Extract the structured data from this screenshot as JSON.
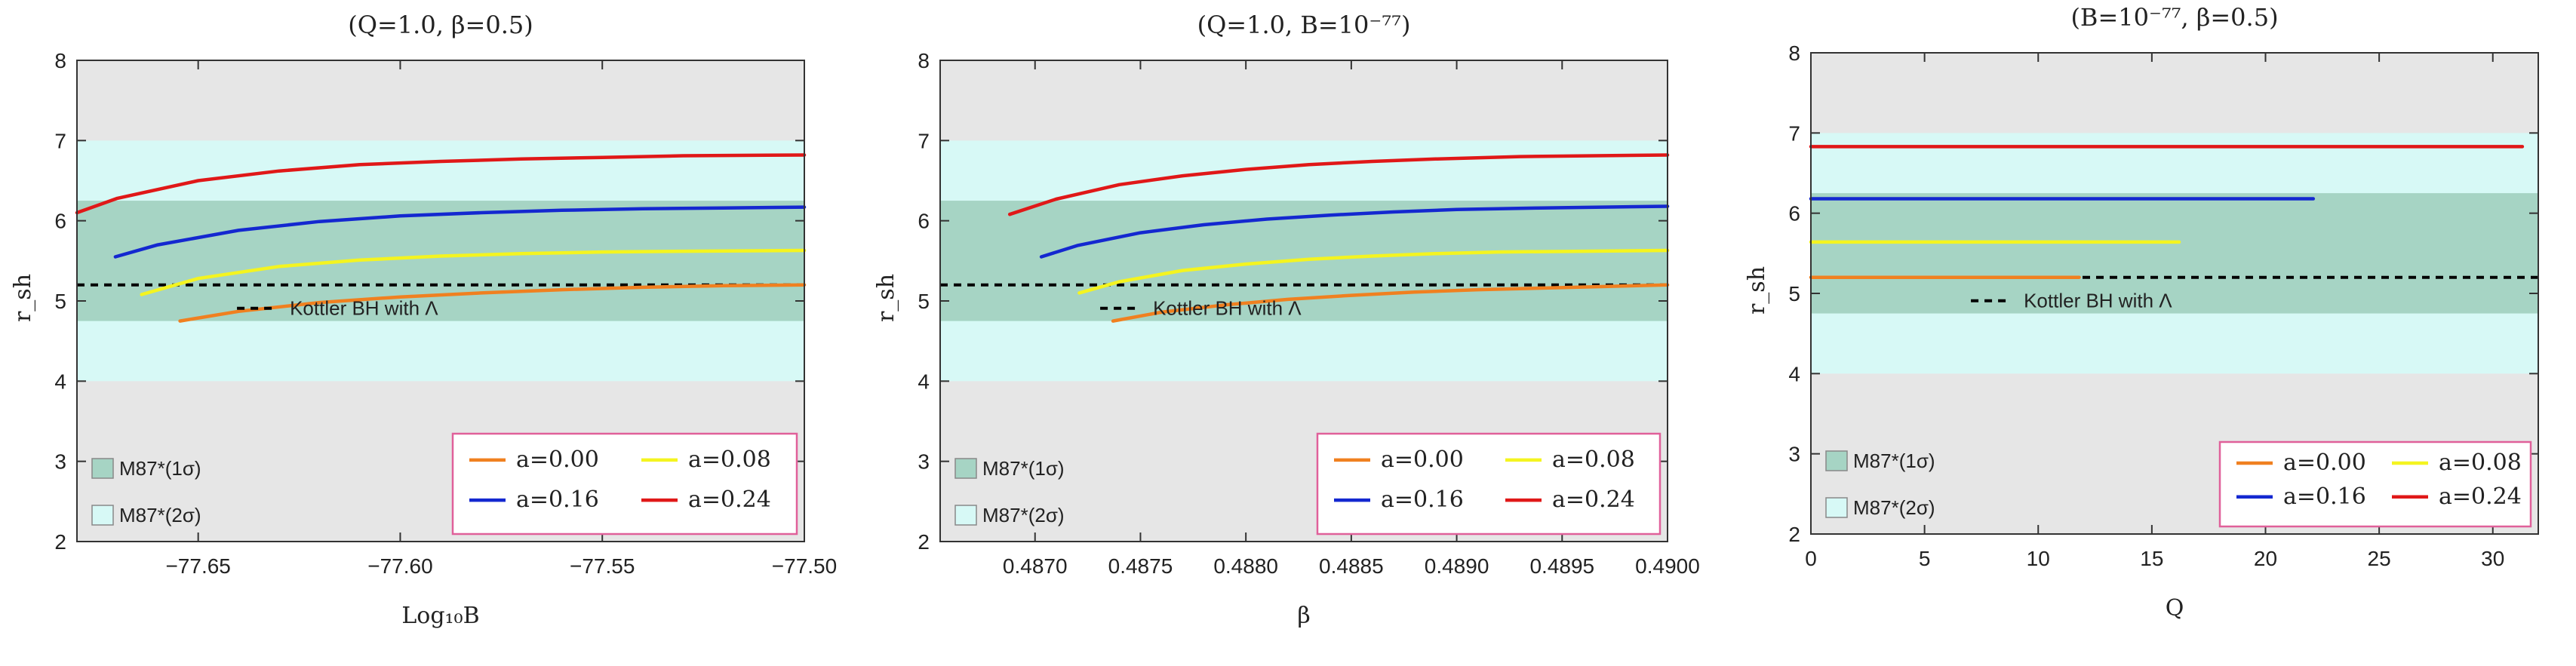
{
  "colors": {
    "outer_band": "#e6e6e6",
    "band_2sigma": "#d7f9f6",
    "band_1sigma": "#a6d4c4",
    "frame": "#333333",
    "legend_border": "#e0609a",
    "kottler_line": "#000000"
  },
  "chart_data": [
    {
      "type": "line",
      "title": "(Q=1.0, β=0.5)",
      "xlabel": "Log₁₀B",
      "ylabel": "r_sh",
      "xlim": [
        -77.68,
        -77.5
      ],
      "ylim": [
        2,
        8
      ],
      "xticks": [
        -77.65,
        -77.6,
        -77.55,
        -77.5
      ],
      "xtick_labels": [
        "−77.65",
        "−77.60",
        "−77.55",
        "−77.50"
      ],
      "yticks": [
        2,
        3,
        4,
        5,
        6,
        7,
        8
      ],
      "bands": [
        {
          "label": "M87*(1σ)",
          "y": [
            4.75,
            6.25
          ],
          "color": "#a6d4c4"
        },
        {
          "label": "M87*(2σ)",
          "y": [
            4.0,
            7.0
          ],
          "color": "#d7f9f6"
        }
      ],
      "kottler": {
        "label": "Kottler BH with Λ",
        "y": 5.2
      },
      "series": [
        {
          "name": "a=0.00",
          "color": "#f08020",
          "x": [
            -77.6545,
            -77.64,
            -77.62,
            -77.6,
            -77.58,
            -77.56,
            -77.54,
            -77.52,
            -77.5
          ],
          "y": [
            4.75,
            4.87,
            4.98,
            5.05,
            5.1,
            5.14,
            5.17,
            5.19,
            5.2
          ]
        },
        {
          "name": "a=0.08",
          "color": "#f4f420",
          "x": [
            -77.664,
            -77.65,
            -77.63,
            -77.61,
            -77.59,
            -77.57,
            -77.55,
            -77.53,
            -77.5
          ],
          "y": [
            5.08,
            5.28,
            5.43,
            5.51,
            5.56,
            5.59,
            5.61,
            5.62,
            5.63
          ]
        },
        {
          "name": "a=0.16",
          "color": "#1428d0",
          "x": [
            -77.6705,
            -77.66,
            -77.64,
            -77.62,
            -77.6,
            -77.58,
            -77.56,
            -77.54,
            -77.52,
            -77.5
          ],
          "y": [
            5.55,
            5.7,
            5.88,
            5.99,
            6.06,
            6.1,
            6.13,
            6.15,
            6.16,
            6.17
          ]
        },
        {
          "name": "a=0.24",
          "color": "#e01818",
          "x": [
            -77.68,
            -77.67,
            -77.65,
            -77.63,
            -77.61,
            -77.59,
            -77.57,
            -77.55,
            -77.53,
            -77.5
          ],
          "y": [
            6.1,
            6.28,
            6.5,
            6.62,
            6.7,
            6.74,
            6.77,
            6.79,
            6.81,
            6.82
          ]
        }
      ]
    },
    {
      "type": "line",
      "title": "(Q=1.0, B=10⁻⁷⁷)",
      "xlabel": "β",
      "ylabel": "r_sh",
      "xlim": [
        0.48655,
        0.49
      ],
      "ylim": [
        2,
        8
      ],
      "xticks": [
        0.487,
        0.4875,
        0.488,
        0.4885,
        0.489,
        0.4895,
        0.49
      ],
      "xtick_labels": [
        "0.4870",
        "0.4875",
        "0.4880",
        "0.4885",
        "0.4890",
        "0.4895",
        "0.4900"
      ],
      "yticks": [
        2,
        3,
        4,
        5,
        6,
        7,
        8
      ],
      "bands": [
        {
          "label": "M87*(1σ)",
          "y": [
            4.75,
            6.25
          ],
          "color": "#a6d4c4"
        },
        {
          "label": "M87*(2σ)",
          "y": [
            4.0,
            7.0
          ],
          "color": "#d7f9f6"
        }
      ],
      "kottler": {
        "label": "Kottler BH with Λ",
        "y": 5.2
      },
      "series": [
        {
          "name": "a=0.00",
          "color": "#f08020",
          "x": [
            0.48737,
            0.4876,
            0.4879,
            0.4882,
            0.4885,
            0.4888,
            0.4891,
            0.4894,
            0.4897,
            0.49
          ],
          "y": [
            4.75,
            4.86,
            4.95,
            5.02,
            5.07,
            5.11,
            5.14,
            5.16,
            5.18,
            5.2
          ]
        },
        {
          "name": "a=0.08",
          "color": "#f4f420",
          "x": [
            0.48721,
            0.4874,
            0.4877,
            0.488,
            0.4883,
            0.4886,
            0.4889,
            0.4892,
            0.4896,
            0.49
          ],
          "y": [
            5.1,
            5.24,
            5.38,
            5.46,
            5.52,
            5.56,
            5.59,
            5.61,
            5.62,
            5.63
          ]
        },
        {
          "name": "a=0.16",
          "color": "#1428d0",
          "x": [
            0.48703,
            0.4872,
            0.4875,
            0.4878,
            0.4881,
            0.4884,
            0.4887,
            0.489,
            0.4894,
            0.49
          ],
          "y": [
            5.55,
            5.69,
            5.85,
            5.95,
            6.02,
            6.07,
            6.11,
            6.14,
            6.16,
            6.18
          ]
        },
        {
          "name": "a=0.24",
          "color": "#e01818",
          "x": [
            0.48688,
            0.4871,
            0.4874,
            0.4877,
            0.488,
            0.4883,
            0.4886,
            0.4889,
            0.4893,
            0.49
          ],
          "y": [
            6.08,
            6.27,
            6.45,
            6.56,
            6.64,
            6.7,
            6.74,
            6.77,
            6.8,
            6.82
          ]
        }
      ]
    },
    {
      "type": "line",
      "title": "(B=10⁻⁷⁷, β=0.5)",
      "xlabel": "Q",
      "ylabel": "r_sh",
      "xlim": [
        0,
        32
      ],
      "ylim": [
        2,
        8
      ],
      "xticks": [
        0,
        5,
        10,
        15,
        20,
        25,
        30
      ],
      "xtick_labels": [
        "0",
        "5",
        "10",
        "15",
        "20",
        "25",
        "30"
      ],
      "yticks": [
        2,
        3,
        4,
        5,
        6,
        7,
        8
      ],
      "bands": [
        {
          "label": "M87*(1σ)",
          "y": [
            4.75,
            6.25
          ],
          "color": "#a6d4c4"
        },
        {
          "label": "M87*(2σ)",
          "y": [
            4.0,
            7.0
          ],
          "color": "#d7f9f6"
        }
      ],
      "kottler": {
        "label": "Kottler BH with Λ",
        "y": 5.2
      },
      "series": [
        {
          "name": "a=0.00",
          "color": "#f08020",
          "x": [
            0,
            11.8
          ],
          "y": [
            5.2,
            5.2
          ]
        },
        {
          "name": "a=0.08",
          "color": "#f4f420",
          "x": [
            0,
            16.2
          ],
          "y": [
            5.64,
            5.64
          ]
        },
        {
          "name": "a=0.16",
          "color": "#1428d0",
          "x": [
            0,
            22.1
          ],
          "y": [
            6.18,
            6.18
          ]
        },
        {
          "name": "a=0.24",
          "color": "#e01818",
          "x": [
            0,
            31.3
          ],
          "y": [
            6.83,
            6.83
          ]
        }
      ]
    }
  ]
}
